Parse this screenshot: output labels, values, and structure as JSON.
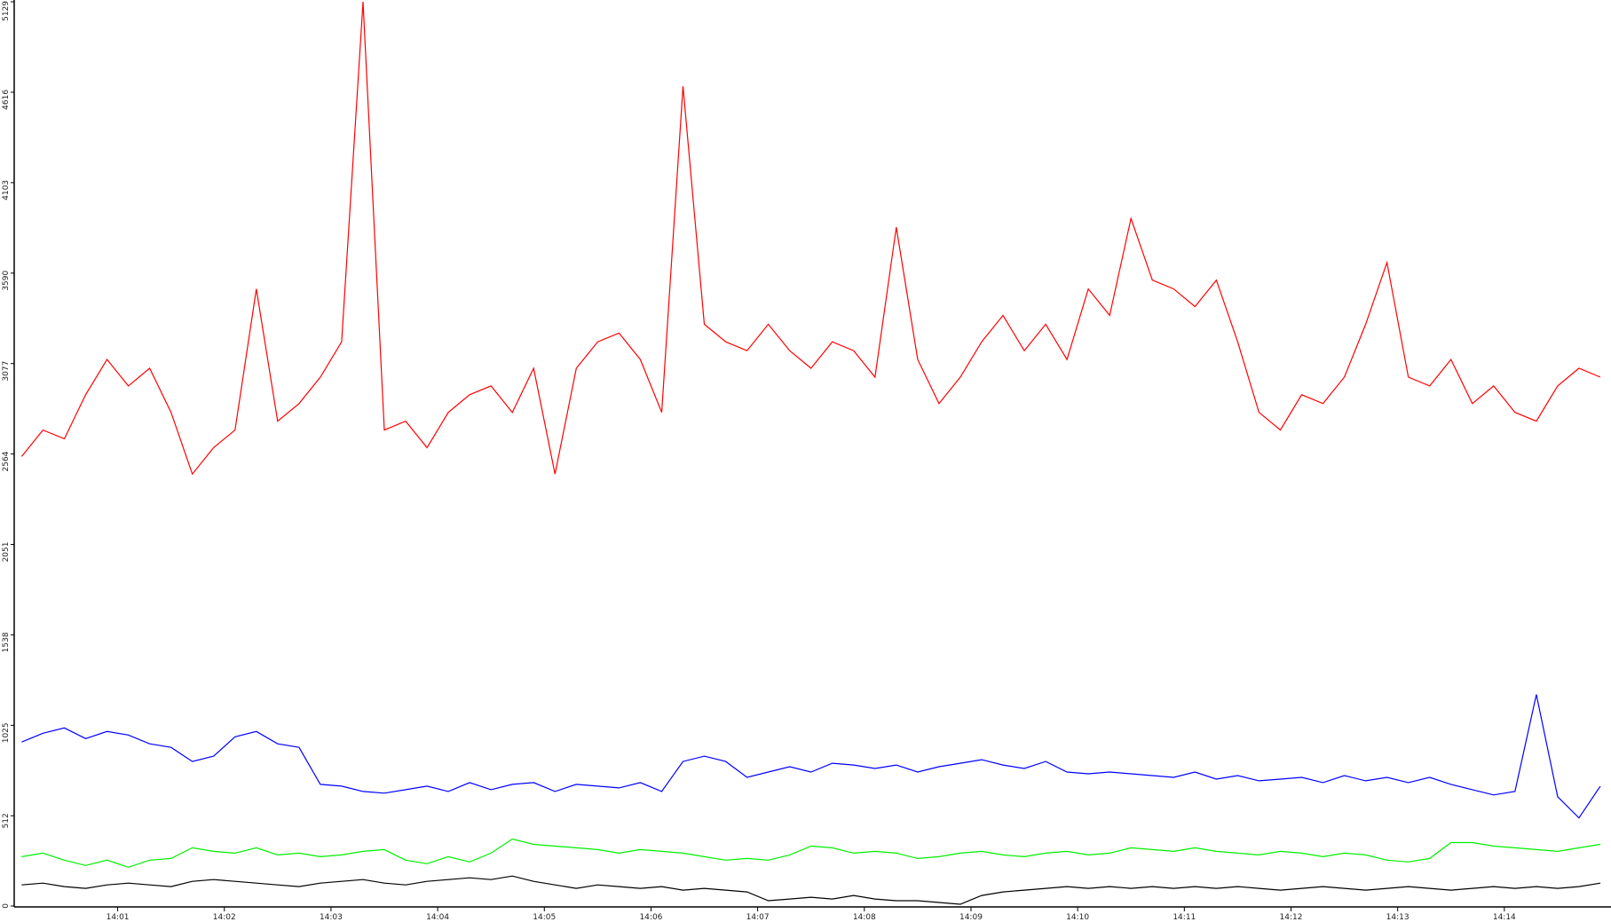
{
  "chart_data": {
    "type": "line",
    "x": [
      0.1,
      0.3,
      0.5,
      0.7,
      0.9,
      1.1,
      1.3,
      1.5,
      1.7,
      1.9,
      2.1,
      2.3,
      2.5,
      2.7,
      2.9,
      3.1,
      3.3,
      3.5,
      3.7,
      3.9,
      4.1,
      4.3,
      4.5,
      4.7,
      4.9,
      5.1,
      5.3,
      5.5,
      5.7,
      5.9,
      6.1,
      6.3,
      6.5,
      6.7,
      6.9,
      7.1,
      7.3,
      7.5,
      7.7,
      7.9,
      8.1,
      8.3,
      8.5,
      8.7,
      8.9,
      9.1,
      9.3,
      9.5,
      9.7,
      9.9,
      10.1,
      10.3,
      10.5,
      10.7,
      10.9,
      11.1,
      11.3,
      11.5,
      11.7,
      11.9,
      12.1,
      12.3,
      12.5,
      12.7,
      12.9,
      13.1,
      13.3,
      13.5,
      13.7,
      13.9,
      14.1,
      14.3,
      14.5,
      14.7,
      14.9
    ],
    "series": [
      {
        "color": "#ff0000",
        "values": [
          2550,
          2700,
          2650,
          2900,
          3100,
          2950,
          3050,
          2800,
          2450,
          2600,
          2700,
          3500,
          2750,
          2850,
          3000,
          3200,
          5129,
          2700,
          2750,
          2600,
          2800,
          2900,
          2950,
          2800,
          3050,
          2450,
          3050,
          3200,
          3250,
          3100,
          2800,
          4650,
          3300,
          3200,
          3150,
          3300,
          3150,
          3050,
          3200,
          3150,
          3000,
          3850,
          3100,
          2850,
          3000,
          3200,
          3350,
          3150,
          3300,
          3100,
          3500,
          3350,
          3900,
          3550,
          3500,
          3400,
          3550,
          3200,
          2800,
          2700,
          2900,
          2850,
          3000,
          3300,
          3650,
          3000,
          2950,
          3100,
          2850,
          2950,
          2800,
          2750,
          2950,
          3050,
          3000
        ]
      },
      {
        "color": "#0000ff",
        "values": [
          930,
          980,
          1010,
          950,
          990,
          970,
          920,
          900,
          820,
          850,
          960,
          990,
          920,
          900,
          690,
          680,
          650,
          640,
          660,
          680,
          650,
          700,
          660,
          690,
          700,
          650,
          690,
          680,
          670,
          700,
          650,
          820,
          850,
          820,
          730,
          760,
          790,
          760,
          810,
          800,
          780,
          800,
          760,
          790,
          810,
          830,
          800,
          780,
          820,
          760,
          750,
          760,
          750,
          740,
          730,
          760,
          720,
          740,
          710,
          720,
          730,
          700,
          740,
          710,
          730,
          700,
          730,
          690,
          660,
          630,
          650,
          1200,
          620,
          500,
          680
        ]
      },
      {
        "color": "#00ee00",
        "values": [
          280,
          300,
          260,
          230,
          260,
          220,
          260,
          270,
          330,
          310,
          300,
          330,
          290,
          300,
          280,
          290,
          310,
          320,
          260,
          240,
          280,
          250,
          300,
          380,
          350,
          340,
          330,
          320,
          300,
          320,
          310,
          300,
          280,
          260,
          270,
          260,
          290,
          340,
          330,
          300,
          310,
          300,
          270,
          280,
          300,
          310,
          290,
          280,
          300,
          310,
          290,
          300,
          330,
          320,
          310,
          330,
          310,
          300,
          290,
          310,
          300,
          280,
          300,
          290,
          260,
          250,
          270,
          360,
          360,
          340,
          330,
          320,
          310,
          330,
          350
        ]
      },
      {
        "color": "#000000",
        "values": [
          120,
          130,
          110,
          100,
          120,
          130,
          120,
          110,
          140,
          150,
          140,
          130,
          120,
          110,
          130,
          140,
          150,
          130,
          120,
          140,
          150,
          160,
          150,
          170,
          140,
          120,
          100,
          120,
          110,
          100,
          110,
          90,
          100,
          90,
          80,
          30,
          40,
          50,
          40,
          60,
          40,
          30,
          30,
          20,
          10,
          60,
          80,
          90,
          100,
          110,
          100,
          110,
          100,
          110,
          100,
          110,
          100,
          110,
          100,
          90,
          100,
          110,
          100,
          90,
          100,
          110,
          100,
          90,
          100,
          110,
          100,
          110,
          100,
          110,
          130
        ]
      }
    ],
    "xlim": [
      0.03,
      15
    ],
    "xticks": [
      {
        "value": 1,
        "label": "14:01"
      },
      {
        "value": 2,
        "label": "14:02"
      },
      {
        "value": 3,
        "label": "14:03"
      },
      {
        "value": 4,
        "label": "14:04"
      },
      {
        "value": 5,
        "label": "14:05"
      },
      {
        "value": 6,
        "label": "14:06"
      },
      {
        "value": 7,
        "label": "14:07"
      },
      {
        "value": 8,
        "label": "14:08"
      },
      {
        "value": 9,
        "label": "14:09"
      },
      {
        "value": 10,
        "label": "14:10"
      },
      {
        "value": 11,
        "label": "14:11"
      },
      {
        "value": 12,
        "label": "14:12"
      },
      {
        "value": 13,
        "label": "14:13"
      },
      {
        "value": 14,
        "label": "14:14"
      }
    ],
    "ylim": [
      0,
      5129
    ],
    "yticks": [
      0,
      512,
      1025,
      1538,
      2051,
      2564,
      3077,
      3590,
      4103,
      4616,
      5129
    ],
    "grid": false
  }
}
